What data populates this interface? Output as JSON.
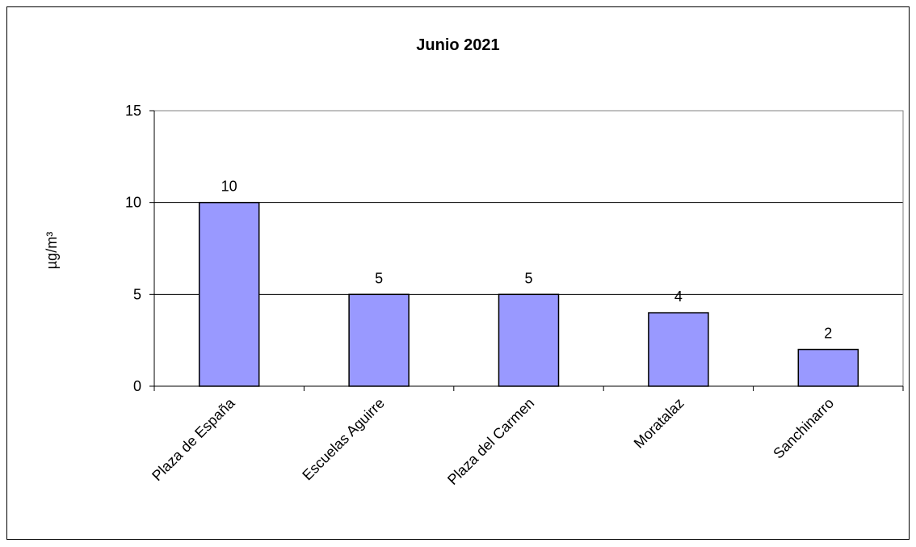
{
  "chart_data": {
    "type": "bar",
    "title": "Junio 2021",
    "ylabel": "µg/m³",
    "xlabel": "",
    "categories": [
      "Plaza de España",
      "Escuelas Aguirre",
      "Plaza del Carmen",
      "Moratalaz",
      "Sanchinarro"
    ],
    "values": [
      10,
      5,
      5,
      4,
      2
    ],
    "ylim": [
      0,
      15
    ],
    "yticks": [
      0,
      5,
      10,
      15
    ],
    "data_labels": [
      "10",
      "5",
      "5",
      "4",
      "2"
    ],
    "grid": true,
    "legend": "none",
    "colors": {
      "bar": "#9999ff",
      "bar_stroke": "#000000",
      "grid": "#000000"
    }
  }
}
